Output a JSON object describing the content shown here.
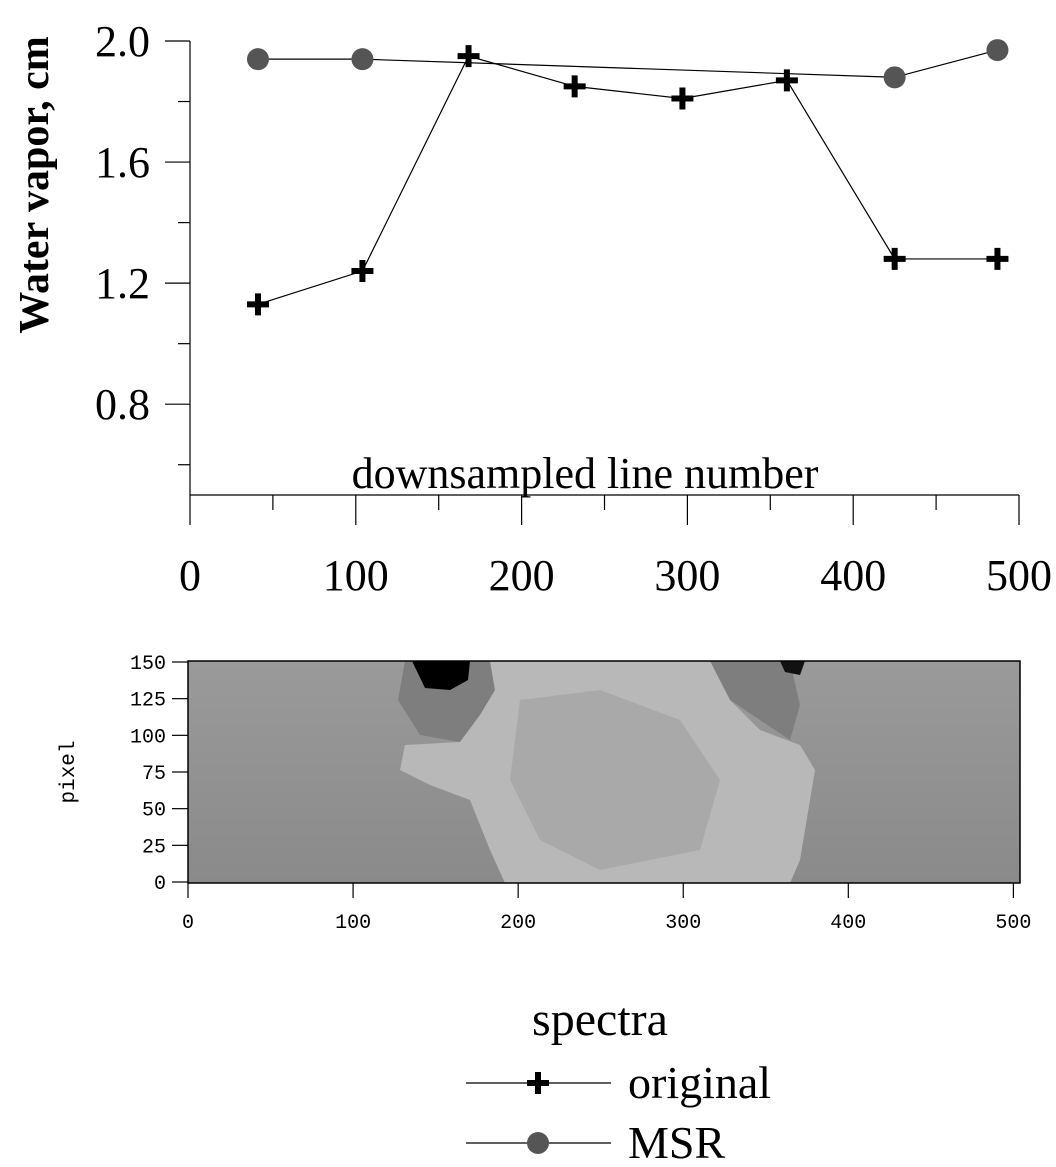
{
  "chart_data": [
    {
      "type": "line",
      "y_label": "Water vapor, cm",
      "x_label": "downsampled line number",
      "xlim": [
        0,
        500
      ],
      "ylim": [
        0.5,
        2.0
      ],
      "xticks": [
        0,
        100,
        200,
        300,
        400,
        500
      ],
      "xminorticks": [
        50,
        150,
        250,
        350,
        450
      ],
      "yticks": [
        {
          "value": 0.8,
          "label": "0.8"
        },
        {
          "value": 1.2,
          "label": "1.2"
        },
        {
          "value": 1.6,
          "label": "1.6"
        },
        {
          "value": 2.0,
          "label": "2.0"
        }
      ],
      "yminorticks": [
        0.6,
        1.0,
        1.4,
        1.8
      ],
      "series": [
        {
          "name": "original",
          "marker": "plus",
          "color": "#000000",
          "x": [
            41,
            104,
            168,
            232,
            297,
            360,
            425,
            487
          ],
          "values": [
            1.13,
            1.24,
            1.95,
            1.85,
            1.81,
            1.87,
            1.28,
            1.28
          ]
        },
        {
          "name": "MSR",
          "marker": "circle",
          "color": "#555555",
          "x": [
            41,
            104,
            425,
            487
          ],
          "values": [
            1.94,
            1.94,
            1.88,
            1.97
          ]
        }
      ],
      "legend": {
        "title": "spectra",
        "position": "bottom"
      }
    },
    {
      "type": "image",
      "y_label": "pixel",
      "xlim": [
        0,
        504
      ],
      "ylim": [
        0,
        150
      ],
      "xticks": [
        0,
        100,
        200,
        300,
        400,
        500
      ],
      "yticks": [
        0,
        25,
        50,
        75,
        100,
        125,
        150
      ]
    }
  ]
}
